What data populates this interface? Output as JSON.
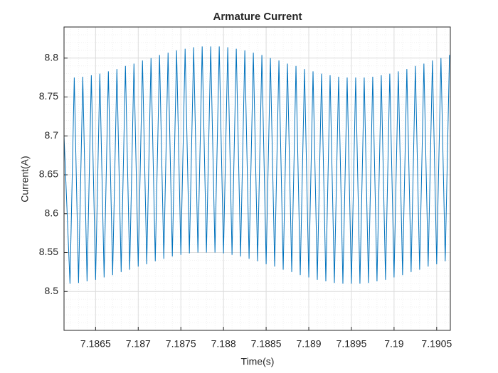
{
  "chart_data": {
    "type": "line",
    "title": "Armature Current",
    "x_label": "Time(s)",
    "y_label": "Current(A)",
    "xlim": [
      7.18613,
      7.19066
    ],
    "ylim": [
      8.45,
      8.84
    ],
    "xticks": [
      7.1865,
      7.187,
      7.1875,
      7.188,
      7.1885,
      7.189,
      7.1895,
      7.19,
      7.1905
    ],
    "yticks": [
      8.5,
      8.55,
      8.6,
      8.65,
      8.7,
      8.75,
      8.8
    ],
    "grid": true,
    "minor_grid": true,
    "x": [
      7.18613,
      7.1862,
      7.18625,
      7.1863,
      7.18635,
      7.1864,
      7.18645,
      7.1865,
      7.18655,
      7.1866,
      7.18665,
      7.1867,
      7.18675,
      7.1868,
      7.18685,
      7.1869,
      7.18695,
      7.187,
      7.18705,
      7.1871,
      7.18715,
      7.1872,
      7.18725,
      7.1873,
      7.18735,
      7.1874,
      7.18745,
      7.1875,
      7.18755,
      7.1876,
      7.18765,
      7.1877,
      7.18775,
      7.1878,
      7.18785,
      7.1879,
      7.18795,
      7.188,
      7.18805,
      7.1881,
      7.18815,
      7.1882,
      7.18825,
      7.1883,
      7.18835,
      7.1884,
      7.18845,
      7.1885,
      7.18855,
      7.1886,
      7.18865,
      7.1887,
      7.18875,
      7.1888,
      7.18885,
      7.1889,
      7.18895,
      7.189,
      7.18905,
      7.1891,
      7.18915,
      7.1892,
      7.18925,
      7.1893,
      7.18935,
      7.1894,
      7.18945,
      7.1895,
      7.18955,
      7.1896,
      7.18965,
      7.1897,
      7.18975,
      7.1898,
      7.18985,
      7.1899,
      7.18995,
      7.19,
      7.19005,
      7.1901,
      7.19015,
      7.1902,
      7.19025,
      7.1903,
      7.19035,
      7.1904,
      7.19045,
      7.1905,
      7.19055,
      7.1906,
      7.19065
    ],
    "series": [
      {
        "color": "#0072bd",
        "values": [
          8.7,
          8.51,
          8.775,
          8.511,
          8.776,
          8.513,
          8.778,
          8.515,
          8.78,
          8.518,
          8.783,
          8.521,
          8.786,
          8.525,
          8.79,
          8.528,
          8.793,
          8.532,
          8.797,
          8.535,
          8.8,
          8.539,
          8.804,
          8.542,
          8.807,
          8.545,
          8.81,
          8.547,
          8.812,
          8.549,
          8.814,
          8.55,
          8.815,
          8.55,
          8.815,
          8.55,
          8.815,
          8.549,
          8.814,
          8.547,
          8.812,
          8.545,
          8.81,
          8.542,
          8.807,
          8.539,
          8.804,
          8.535,
          8.8,
          8.532,
          8.797,
          8.528,
          8.793,
          8.525,
          8.79,
          8.521,
          8.786,
          8.518,
          8.783,
          8.515,
          8.78,
          8.513,
          8.778,
          8.511,
          8.776,
          8.51,
          8.775,
          8.51,
          8.775,
          8.51,
          8.775,
          8.511,
          8.776,
          8.513,
          8.778,
          8.515,
          8.78,
          8.518,
          8.783,
          8.521,
          8.786,
          8.525,
          8.79,
          8.528,
          8.793,
          8.532,
          8.797,
          8.535,
          8.8,
          8.539,
          8.804
        ]
      }
    ]
  }
}
